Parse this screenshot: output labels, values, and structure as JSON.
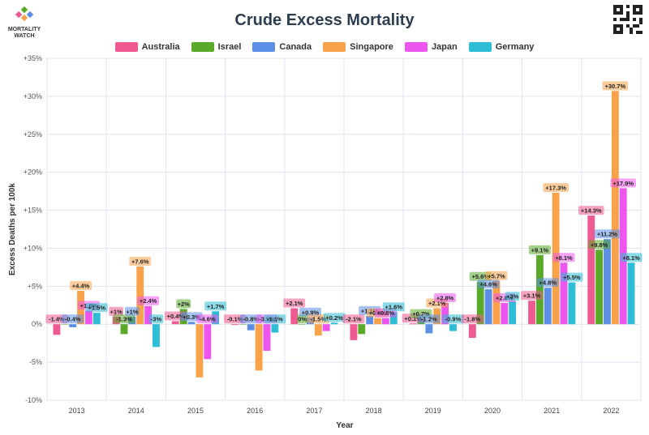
{
  "header": {
    "logo_line1": "MORTALITY",
    "logo_line2": "WATCH",
    "title": "Crude Excess Mortality"
  },
  "chart_data": {
    "type": "bar",
    "title": "Crude Excess Mortality",
    "xlabel": "Year",
    "ylabel": "Excess Deaths per 100k",
    "ylim": [
      -10,
      35
    ],
    "yticks": [
      "-10%",
      "-5%",
      "0%",
      "+5%",
      "+10%",
      "+15%",
      "+20%",
      "+25%",
      "+30%",
      "+35%"
    ],
    "grid": true,
    "legend_position": "top-center",
    "categories": [
      "2013",
      "2014",
      "2015",
      "2016",
      "2017",
      "2018",
      "2019",
      "2020",
      "2021",
      "2022"
    ],
    "series": [
      {
        "name": "Australia",
        "color": "#f05a92",
        "values": [
          -1.4,
          1,
          0.4,
          -0.1,
          2.1,
          -2.1,
          0.1,
          -1.8,
          3.1,
          14.3
        ],
        "labels": [
          "-1.4%",
          "+1%",
          "+0.4%",
          "-0.1%",
          "+2.1%",
          "-2.1%",
          "+0.1%",
          "-1.8%",
          "+3.1%",
          "+14.3%"
        ]
      },
      {
        "name": "Israel",
        "color": "#5aa928",
        "values": [
          0,
          -1.3,
          2,
          0,
          0,
          -1.3,
          0.7,
          5.6,
          9.1,
          9.8
        ],
        "labels": [
          "",
          "-1.3%",
          "+2%",
          "",
          "0%",
          "",
          "+0.7%",
          "+5.6%",
          "+9.1%",
          "+9.8%"
        ]
      },
      {
        "name": "Canada",
        "color": "#5b8fe6",
        "values": [
          -0.4,
          1,
          0.3,
          -0.8,
          0.9,
          1.1,
          -1.2,
          4.6,
          4.8,
          11.2
        ],
        "labels": [
          "-0.4%",
          "+1%",
          "+0.3%",
          "-0.8%",
          "+0.9%",
          "+1.1%",
          "-1.2%",
          "+4.6%",
          "+4.8%",
          "+11.2%"
        ]
      },
      {
        "name": "Singapore",
        "color": "#f9a24a",
        "values": [
          4.4,
          7.6,
          -7,
          -6.1,
          -1.5,
          0.8,
          2.1,
          5.7,
          17.3,
          30.7
        ],
        "labels": [
          "+4.4%",
          "+7.6%",
          "",
          "",
          "-1.5%",
          "+0.8%",
          "+2.1%",
          "+5.7%",
          "+17.3%",
          "+30.7%"
        ]
      },
      {
        "name": "Japan",
        "color": "#ee55ee",
        "values": [
          1.8,
          2.4,
          -4.6,
          -3.5,
          -0.9,
          0.8,
          2.8,
          2.8,
          8.1,
          17.9
        ],
        "labels": [
          "+1.8%",
          "+2.4%",
          "-4.6%",
          "-3.5%",
          "",
          "+0.8%",
          "+2.8%",
          "+2.8%",
          "+8.1%",
          "+17.9%"
        ]
      },
      {
        "name": "Germany",
        "color": "#2ebdd6",
        "values": [
          1.5,
          -3,
          1.7,
          -1.1,
          0.2,
          1.6,
          -0.9,
          3,
          5.5,
          8.1
        ],
        "labels": [
          "+1.5%",
          "-3%",
          "+1.7%",
          "-1.1%",
          "+0.2%",
          "+1.6%",
          "-0.9%",
          "+3%",
          "+5.5%",
          "+8.1%"
        ]
      }
    ]
  }
}
